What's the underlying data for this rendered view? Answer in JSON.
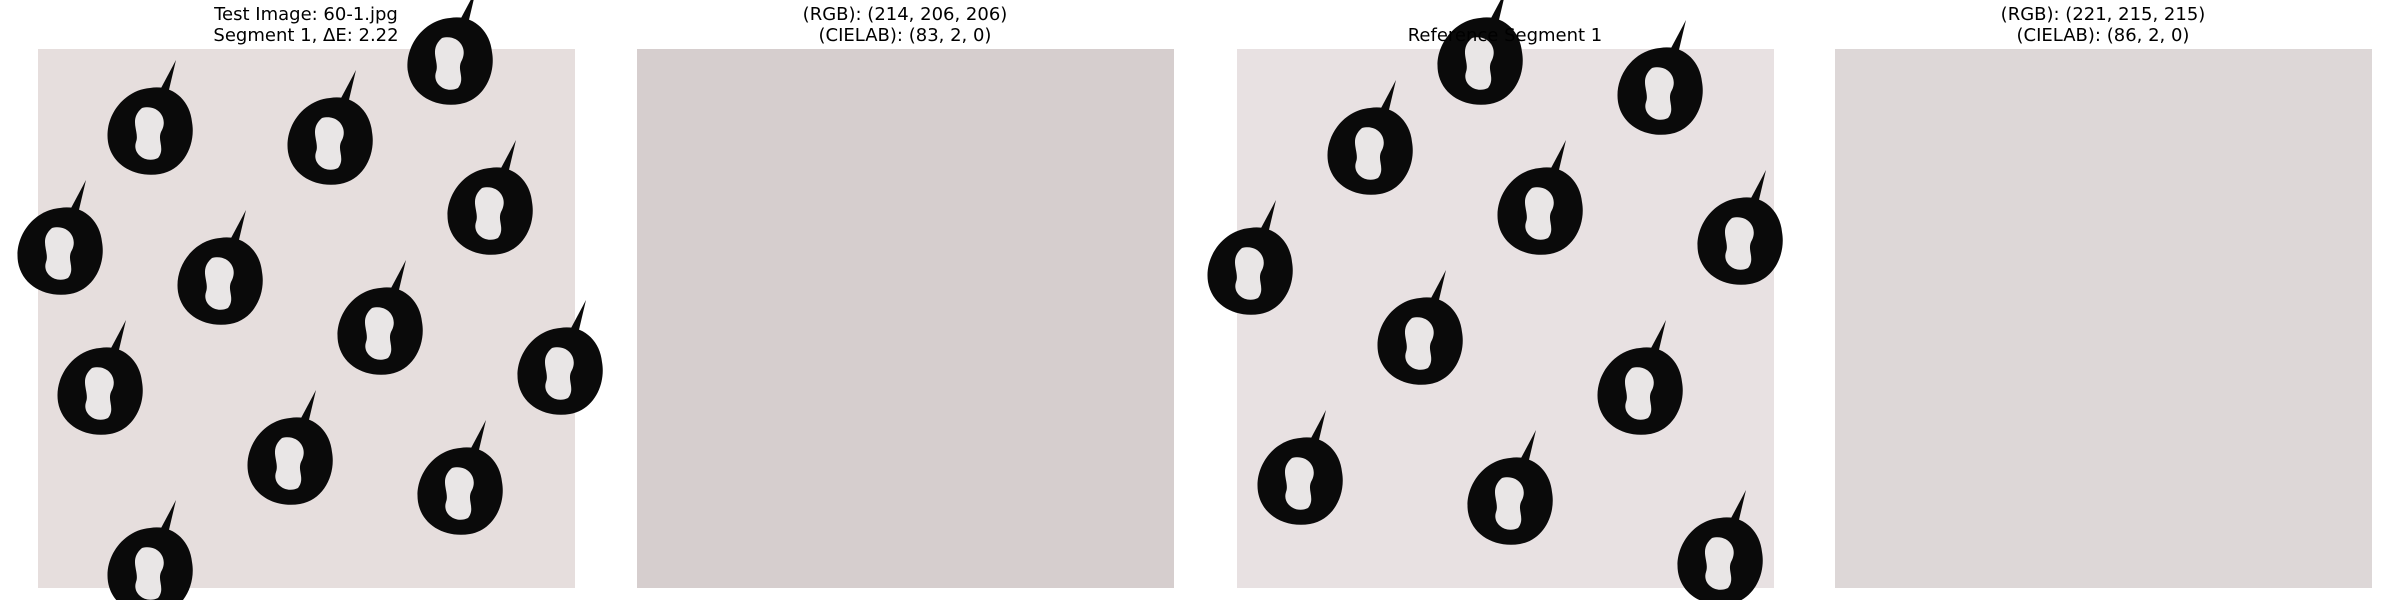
{
  "panels": [
    {
      "title_lines": [
        "Test Image: 60-1.jpg",
        "Segment 1, ΔE: 2.22"
      ]
    },
    {
      "title_lines": [
        "(RGB): (214, 206, 206)",
        "(CIELAB): (83, 2, 0)"
      ]
    },
    {
      "title_lines": [
        "Reference Segment 1"
      ]
    },
    {
      "title_lines": [
        "(RGB): (221, 215, 215)",
        "(CIELAB): (86, 2, 0)"
      ]
    }
  ]
}
